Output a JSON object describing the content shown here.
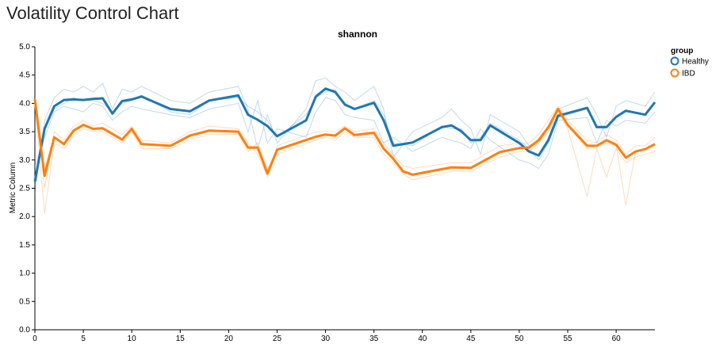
{
  "page": {
    "title": "Volatility Control Chart"
  },
  "chart_data": {
    "type": "line",
    "title": "shannon",
    "xlabel": "",
    "ylabel": "Metric Column",
    "xlim": [
      0,
      64
    ],
    "ylim": [
      0,
      5
    ],
    "x_ticks": [
      0,
      5,
      10,
      15,
      20,
      25,
      30,
      35,
      40,
      45,
      50,
      55,
      60
    ],
    "y_ticks": [
      "0.0",
      "0.5",
      "1.0",
      "1.5",
      "2.0",
      "2.5",
      "3.0",
      "3.5",
      "4.0",
      "4.5",
      "5.0"
    ],
    "grid": false,
    "legend": {
      "title": "group",
      "placement": "top-right",
      "entries": [
        "Healthy",
        "IBD"
      ]
    },
    "series": [
      {
        "name": "Healthy",
        "color": "#1f77b4",
        "x": [
          0,
          1,
          2,
          3,
          4,
          5,
          6,
          7,
          8,
          9,
          10,
          11,
          14,
          16,
          18,
          21,
          22,
          23,
          24,
          25,
          28,
          29,
          30,
          31,
          32,
          33,
          35,
          36,
          37,
          39,
          42,
          43,
          44,
          45,
          46,
          47,
          50,
          51,
          52,
          53,
          54,
          57,
          58,
          59,
          60,
          61,
          63,
          64
        ],
        "values": [
          2.62,
          3.55,
          3.95,
          4.06,
          4.07,
          4.06,
          4.08,
          4.09,
          3.82,
          4.04,
          4.07,
          4.12,
          3.9,
          3.86,
          4.05,
          4.14,
          3.8,
          3.71,
          3.6,
          3.42,
          3.7,
          4.12,
          4.26,
          4.2,
          3.98,
          3.9,
          4.01,
          3.7,
          3.25,
          3.31,
          3.58,
          3.61,
          3.51,
          3.35,
          3.35,
          3.61,
          3.3,
          3.15,
          3.08,
          3.35,
          3.78,
          3.92,
          3.58,
          3.58,
          3.76,
          3.87,
          3.8,
          4.02
        ]
      },
      {
        "name": "IBD",
        "color": "#ff7f0e",
        "x": [
          0,
          1,
          2,
          3,
          4,
          5,
          6,
          7,
          9,
          10,
          11,
          14,
          16,
          18,
          21,
          22,
          23,
          24,
          25,
          29,
          30,
          31,
          32,
          33,
          35,
          36,
          37,
          38,
          39,
          43,
          45,
          48,
          50,
          51,
          52,
          53,
          54,
          55,
          57,
          58,
          59,
          60,
          61,
          62,
          63,
          64
        ],
        "values": [
          4.07,
          2.72,
          3.4,
          3.28,
          3.52,
          3.62,
          3.55,
          3.56,
          3.36,
          3.55,
          3.28,
          3.25,
          3.43,
          3.52,
          3.5,
          3.22,
          3.22,
          2.76,
          3.18,
          3.41,
          3.45,
          3.43,
          3.56,
          3.44,
          3.48,
          3.2,
          3.02,
          2.8,
          2.74,
          2.87,
          2.86,
          3.14,
          3.21,
          3.22,
          3.35,
          3.58,
          3.9,
          3.62,
          3.25,
          3.25,
          3.35,
          3.27,
          3.04,
          3.15,
          3.19,
          3.28
        ]
      }
    ],
    "individual_traces": [
      {
        "group": "Healthy",
        "x": [
          0,
          1,
          2,
          3,
          4,
          5,
          6,
          7,
          8,
          9,
          10,
          11,
          14,
          16,
          18,
          21,
          22,
          23,
          24,
          25,
          28,
          29,
          30,
          31,
          32,
          33,
          35,
          36,
          37,
          39,
          42,
          43,
          44,
          45,
          46,
          47,
          50,
          51,
          52,
          53,
          54,
          57,
          58,
          59,
          60,
          61,
          63,
          64
        ],
        "values": [
          2.4,
          3.7,
          4.1,
          4.25,
          4.2,
          4.3,
          4.2,
          4.35,
          3.9,
          4.25,
          4.2,
          4.3,
          4.05,
          4.0,
          4.2,
          4.3,
          3.9,
          3.2,
          3.8,
          3.3,
          3.9,
          4.4,
          4.45,
          4.3,
          4.2,
          4.05,
          4.3,
          3.9,
          3.05,
          3.5,
          3.75,
          3.9,
          3.7,
          3.55,
          3.1,
          3.8,
          3.5,
          3.25,
          3.35,
          3.6,
          3.9,
          4.1,
          3.8,
          3.4,
          3.95,
          4.05,
          3.95,
          4.2
        ]
      },
      {
        "group": "Healthy",
        "x": [
          0,
          1,
          2,
          3,
          4,
          5,
          6,
          7,
          8,
          9,
          10,
          11,
          14,
          16,
          18,
          21,
          22,
          23,
          24,
          25,
          28,
          29,
          30,
          31,
          32,
          33,
          35,
          36,
          37,
          39,
          42,
          43,
          44,
          45,
          46,
          47,
          50,
          51,
          52,
          53,
          54,
          57,
          58,
          59,
          60,
          61,
          63,
          64
        ],
        "values": [
          2.9,
          3.4,
          3.85,
          3.95,
          3.9,
          3.85,
          4.0,
          3.95,
          3.7,
          3.85,
          3.95,
          3.9,
          3.8,
          3.75,
          3.9,
          4.0,
          3.5,
          4.05,
          3.3,
          3.55,
          3.4,
          3.85,
          4.1,
          4.05,
          3.8,
          3.75,
          3.7,
          3.3,
          3.4,
          3.15,
          3.4,
          3.35,
          3.3,
          3.2,
          3.55,
          3.35,
          3.0,
          2.95,
          2.85,
          3.1,
          3.7,
          3.75,
          3.3,
          3.7,
          3.6,
          3.7,
          3.65,
          3.85
        ]
      },
      {
        "group": "Healthy",
        "x": [
          0,
          1,
          2,
          3,
          4,
          5,
          6,
          7,
          8,
          9,
          10,
          11,
          14,
          16,
          18,
          21,
          22,
          23,
          24,
          25,
          28,
          29,
          30,
          31,
          32,
          33,
          35,
          36,
          37,
          39,
          42,
          43,
          44,
          45,
          46,
          47,
          50,
          51,
          52,
          53,
          54,
          57,
          58,
          59,
          60,
          61,
          63,
          64
        ],
        "values": [
          2.55,
          3.55,
          3.9,
          4.0,
          4.1,
          4.05,
          4.05,
          4.0,
          3.85,
          4.0,
          4.05,
          4.15,
          3.85,
          3.8,
          4.05,
          4.1,
          3.95,
          3.85,
          3.7,
          3.4,
          3.8,
          4.1,
          4.2,
          4.25,
          3.95,
          3.9,
          4.05,
          3.8,
          3.3,
          3.25,
          3.6,
          3.55,
          3.55,
          3.3,
          3.4,
          3.65,
          3.35,
          3.2,
          3.0,
          3.3,
          3.75,
          3.9,
          3.6,
          3.6,
          3.75,
          3.85,
          3.8,
          4.0
        ]
      },
      {
        "group": "IBD",
        "x": [
          0,
          1,
          2,
          3,
          4,
          5,
          6,
          7,
          9,
          10,
          11,
          14,
          16,
          18,
          21,
          22,
          23,
          24,
          25,
          29,
          30,
          31,
          32,
          33,
          35,
          36,
          37,
          38,
          39,
          43,
          45,
          48,
          50,
          51,
          52,
          53,
          54,
          55,
          57,
          58,
          59,
          60,
          61,
          62,
          63,
          64
        ],
        "values": [
          4.1,
          2.5,
          3.5,
          3.35,
          3.6,
          3.7,
          3.6,
          3.65,
          3.45,
          3.6,
          3.35,
          3.3,
          3.5,
          3.6,
          3.55,
          3.3,
          3.1,
          2.7,
          3.25,
          3.5,
          3.5,
          3.5,
          3.6,
          3.5,
          3.55,
          3.3,
          3.1,
          2.9,
          2.85,
          2.95,
          2.95,
          3.25,
          3.3,
          3.3,
          3.45,
          3.7,
          3.95,
          3.7,
          3.35,
          3.3,
          3.45,
          3.35,
          3.1,
          3.25,
          3.25,
          3.4
        ]
      },
      {
        "group": "IBD",
        "x": [
          0,
          1,
          2,
          3,
          4,
          5,
          6,
          7,
          9,
          10,
          11,
          14,
          16,
          18,
          21,
          22,
          23,
          24,
          25,
          29,
          30,
          31,
          32,
          33,
          35,
          36,
          37,
          38,
          39,
          43,
          45,
          48,
          50,
          51,
          52,
          53,
          54,
          55,
          57,
          58,
          59,
          60,
          61,
          62,
          63,
          64
        ],
        "values": [
          4.0,
          2.05,
          3.3,
          3.2,
          3.45,
          3.55,
          3.5,
          3.5,
          3.3,
          3.5,
          3.2,
          3.2,
          3.35,
          3.45,
          3.45,
          3.15,
          3.3,
          2.85,
          3.1,
          3.35,
          3.4,
          3.35,
          3.5,
          3.4,
          3.4,
          3.1,
          2.95,
          2.75,
          2.65,
          2.8,
          2.8,
          3.05,
          3.15,
          3.15,
          3.3,
          3.5,
          3.85,
          3.55,
          2.35,
          3.2,
          2.7,
          3.2,
          2.95,
          3.05,
          3.1,
          3.15
        ]
      },
      {
        "group": "IBD",
        "x": [
          0,
          1,
          2,
          3,
          4,
          5,
          6,
          7,
          9,
          10,
          11,
          14,
          16,
          18,
          21,
          22,
          23,
          24,
          25,
          29,
          30,
          31,
          32,
          33,
          35,
          36,
          37,
          38,
          39,
          43,
          45,
          48,
          50,
          51,
          52,
          53,
          54,
          55,
          57,
          58,
          59,
          60,
          61,
          62,
          63,
          64
        ],
        "values": [
          4.05,
          2.85,
          3.4,
          3.25,
          3.5,
          3.6,
          3.55,
          3.55,
          3.35,
          3.55,
          3.3,
          3.25,
          3.45,
          3.5,
          3.5,
          3.2,
          3.2,
          2.75,
          3.2,
          3.4,
          3.45,
          3.45,
          3.55,
          3.45,
          3.5,
          3.2,
          3.0,
          2.8,
          2.75,
          2.85,
          2.85,
          3.15,
          3.2,
          3.2,
          3.3,
          3.55,
          3.9,
          3.6,
          3.2,
          3.25,
          3.3,
          3.25,
          2.2,
          3.15,
          3.2,
          3.3
        ]
      }
    ]
  }
}
